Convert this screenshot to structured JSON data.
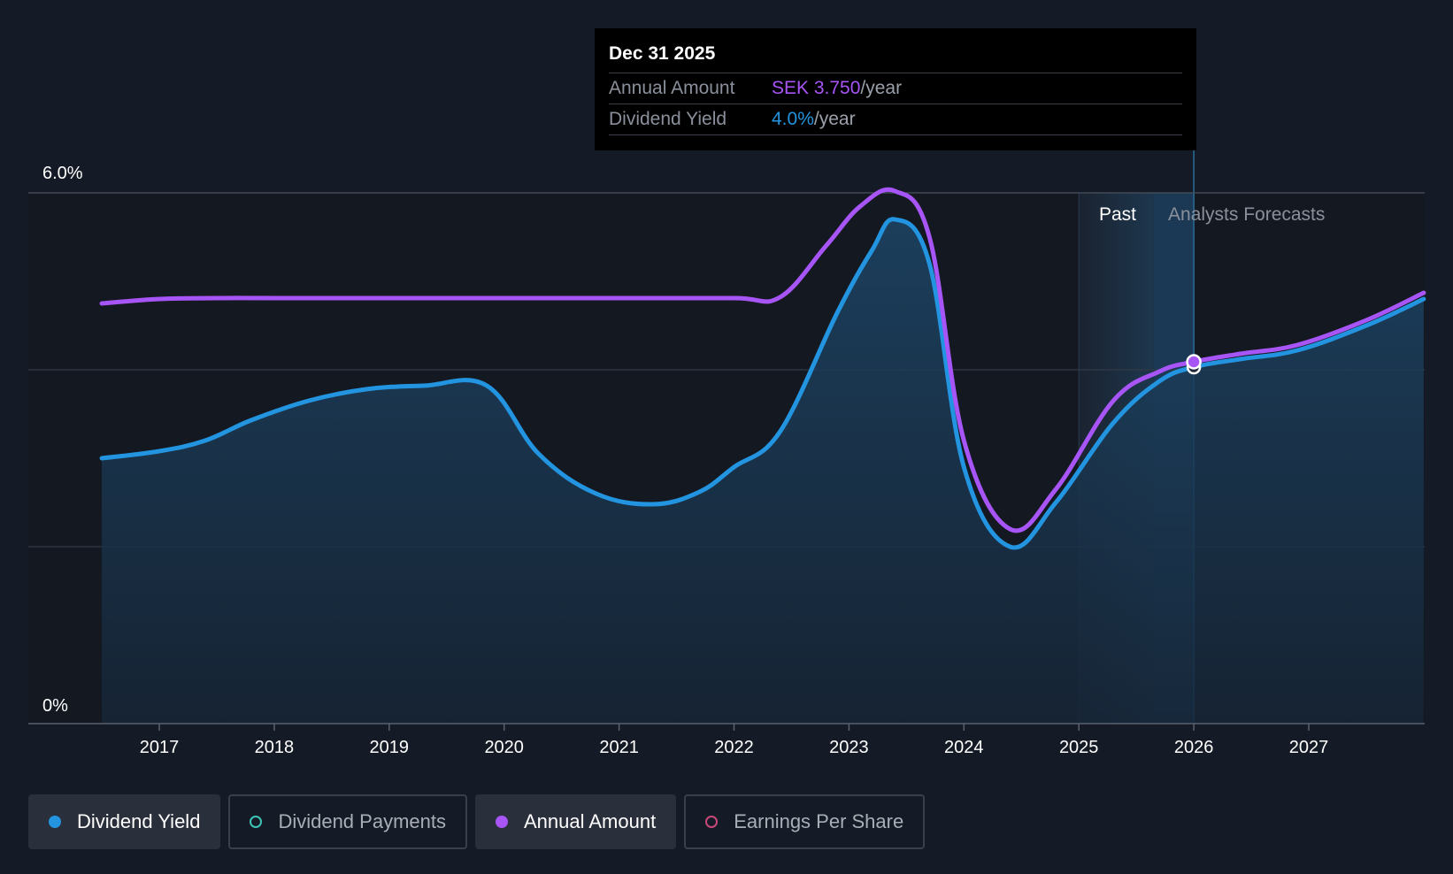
{
  "tooltip": {
    "date": "Dec 31 2025",
    "annual_amount_label": "Annual Amount",
    "annual_amount_value": "SEK 3.750",
    "annual_amount_unit": "/year",
    "dividend_yield_label": "Dividend Yield",
    "dividend_yield_value": "4.0%",
    "dividend_yield_unit": "/year"
  },
  "labels": {
    "past": "Past",
    "forecast": "Analysts Forecasts"
  },
  "legend": [
    {
      "label": "Dividend Yield",
      "color": "#2394e0",
      "style": "filled",
      "active": true
    },
    {
      "label": "Dividend Payments",
      "color": "#3cc4b4",
      "style": "hollow",
      "active": false
    },
    {
      "label": "Annual Amount",
      "color": "#a855f7",
      "style": "filled",
      "active": true
    },
    {
      "label": "Earnings Per Share",
      "color": "#c8487a",
      "style": "hollow",
      "active": false
    }
  ],
  "colors": {
    "background": "#151b26",
    "dividend_yield": "#2394e0",
    "annual_amount": "#a855f7",
    "grid": "#3a414c",
    "highlight": "#1d4f73"
  },
  "chart_data": {
    "type": "line",
    "x_ticks": [
      2017,
      2018,
      2019,
      2020,
      2021,
      2022,
      2023,
      2024,
      2025,
      2026,
      2027
    ],
    "y_ticks": [
      {
        "value": 0,
        "label": "0%"
      },
      {
        "value": 6,
        "label": "6.0%"
      }
    ],
    "ylim": [
      0,
      6
    ],
    "xlim": [
      2016.0,
      2028.0
    ],
    "grid": true,
    "past_region": [
      2025.0,
      2025.65
    ],
    "forecast_start": 2025.65,
    "tooltip_x": 2026.0,
    "series": [
      {
        "name": "Dividend Yield",
        "color": "#2394e0",
        "fill": true,
        "points": [
          [
            2016.5,
            3.0
          ],
          [
            2017.0,
            3.08
          ],
          [
            2017.4,
            3.2
          ],
          [
            2017.8,
            3.43
          ],
          [
            2018.3,
            3.65
          ],
          [
            2018.8,
            3.78
          ],
          [
            2019.3,
            3.82
          ],
          [
            2019.85,
            3.82
          ],
          [
            2020.3,
            3.05
          ],
          [
            2020.8,
            2.6
          ],
          [
            2021.3,
            2.48
          ],
          [
            2021.7,
            2.62
          ],
          [
            2022.0,
            2.9
          ],
          [
            2022.4,
            3.3
          ],
          [
            2022.9,
            4.65
          ],
          [
            2023.2,
            5.35
          ],
          [
            2023.4,
            5.7
          ],
          [
            2023.7,
            5.2
          ],
          [
            2024.0,
            2.9
          ],
          [
            2024.4,
            2.0
          ],
          [
            2024.8,
            2.5
          ],
          [
            2025.3,
            3.4
          ],
          [
            2025.7,
            3.87
          ],
          [
            2026.0,
            4.03
          ],
          [
            2026.4,
            4.12
          ],
          [
            2026.9,
            4.22
          ],
          [
            2027.5,
            4.5
          ],
          [
            2028.0,
            4.8
          ]
        ]
      },
      {
        "name": "Annual Amount",
        "color": "#a855f7",
        "fill": false,
        "points": [
          [
            2016.5,
            4.75
          ],
          [
            2017.0,
            4.8
          ],
          [
            2017.5,
            4.81
          ],
          [
            2018.0,
            4.81
          ],
          [
            2019.0,
            4.81
          ],
          [
            2020.0,
            4.81
          ],
          [
            2021.0,
            4.81
          ],
          [
            2022.0,
            4.81
          ],
          [
            2022.4,
            4.82
          ],
          [
            2022.8,
            5.4
          ],
          [
            2023.1,
            5.85
          ],
          [
            2023.4,
            6.02
          ],
          [
            2023.7,
            5.5
          ],
          [
            2024.0,
            3.2
          ],
          [
            2024.4,
            2.2
          ],
          [
            2024.8,
            2.65
          ],
          [
            2025.3,
            3.65
          ],
          [
            2025.7,
            3.98
          ],
          [
            2026.0,
            4.09
          ],
          [
            2026.4,
            4.18
          ],
          [
            2026.9,
            4.28
          ],
          [
            2027.5,
            4.56
          ],
          [
            2028.0,
            4.87
          ]
        ]
      }
    ]
  }
}
